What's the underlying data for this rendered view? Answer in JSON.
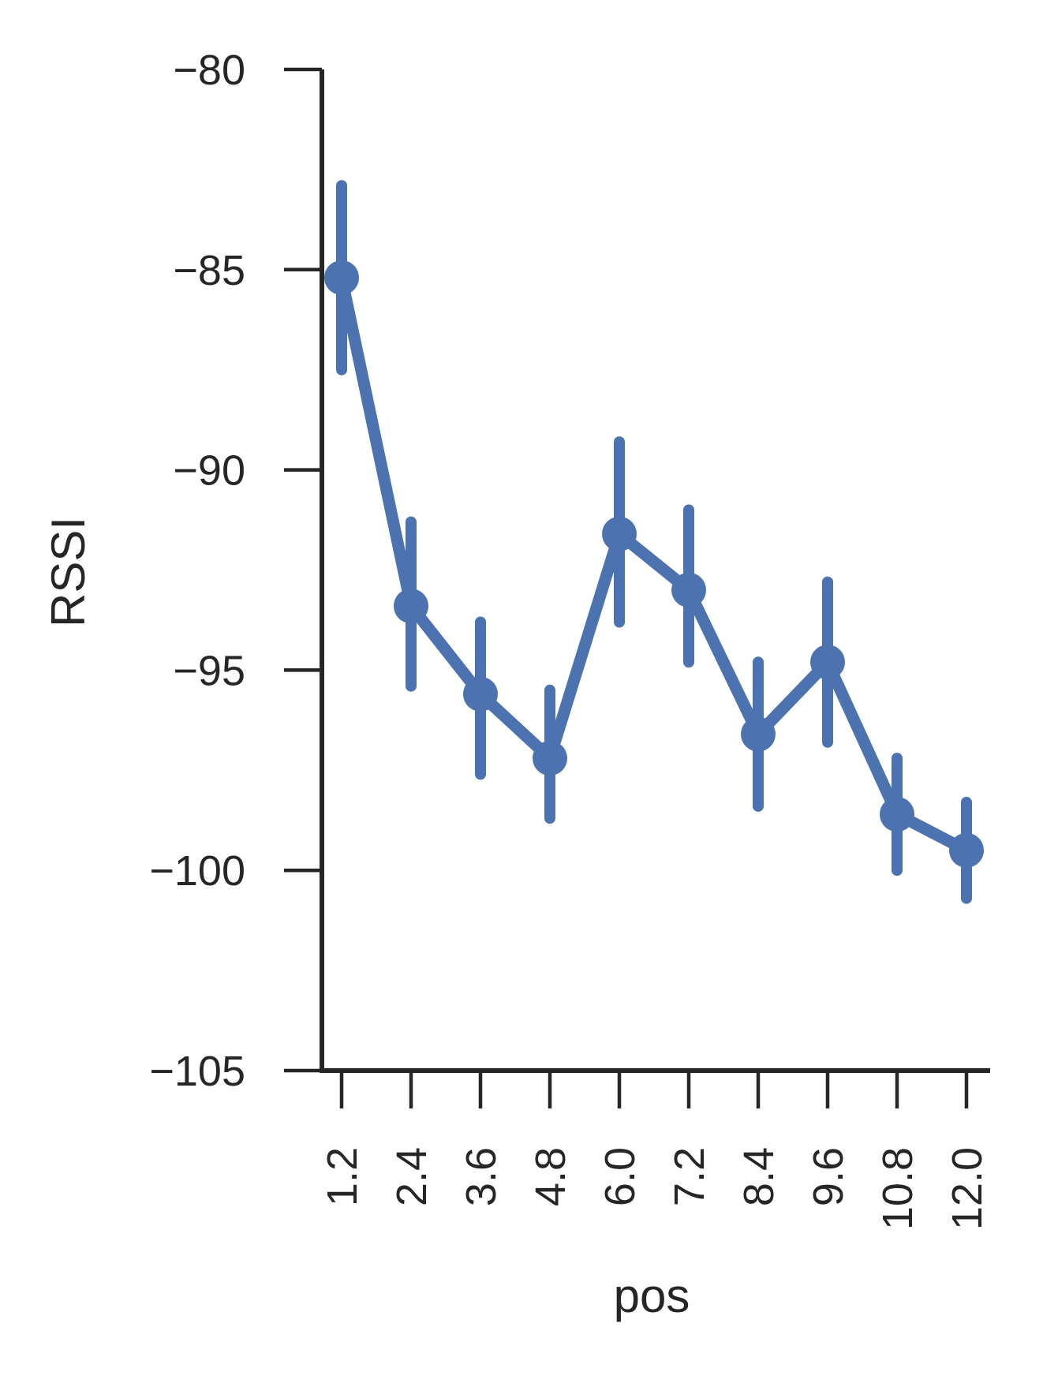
{
  "chart_data": {
    "type": "line",
    "title": "",
    "xlabel": "pos",
    "ylabel": "RSSI",
    "categories": [
      "1.2",
      "2.4",
      "3.6",
      "4.8",
      "6.0",
      "7.2",
      "8.4",
      "9.6",
      "10.8",
      "12.0"
    ],
    "series": [
      {
        "values": [
          -85.2,
          -93.4,
          -95.6,
          -97.2,
          -91.6,
          -93.0,
          -96.6,
          -94.8,
          -98.6,
          -99.5
        ],
        "ci_low": [
          -87.5,
          -95.4,
          -97.6,
          -98.7,
          -93.8,
          -94.8,
          -98.4,
          -96.8,
          -100.0,
          -100.7
        ],
        "ci_high": [
          -82.9,
          -91.3,
          -93.8,
          -95.5,
          -89.3,
          -91.0,
          -94.8,
          -92.8,
          -97.2,
          -98.3
        ],
        "color": "#4c72b0"
      }
    ],
    "yticks": [
      "−80",
      "−85",
      "−90",
      "−95",
      "−100",
      "−105"
    ],
    "ytick_values": [
      -80,
      -85,
      -90,
      -95,
      -100,
      -105
    ],
    "ylim": [
      -105,
      -80
    ],
    "grid": false,
    "legend": "none",
    "axis_color": "#262626"
  }
}
